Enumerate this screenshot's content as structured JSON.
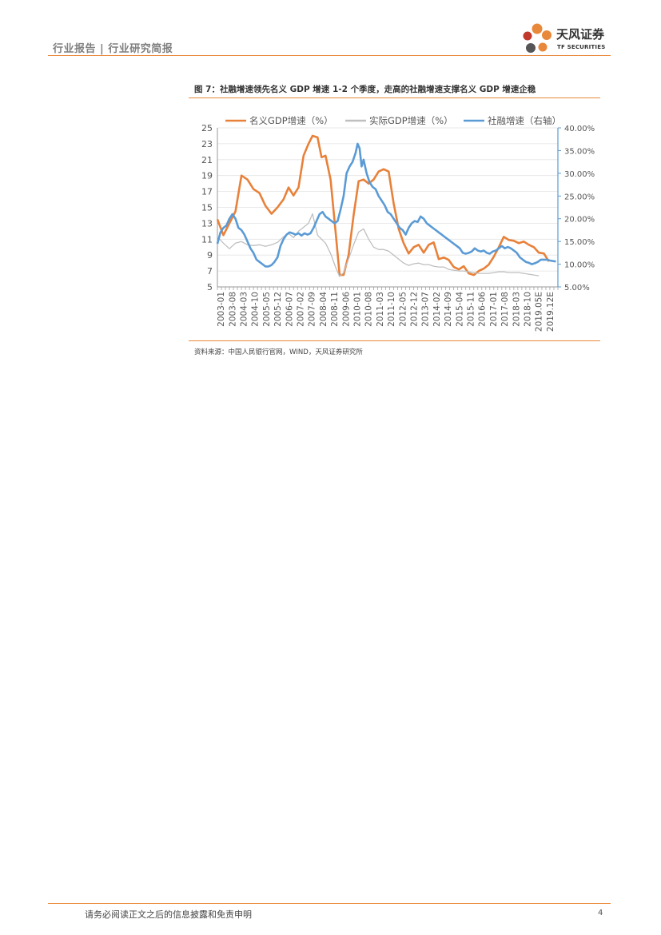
{
  "header": {
    "breadcrumb": "行业报告 | 行业研究简报"
  },
  "logo": {
    "name": "天风证券",
    "sub": "TF SECURITIES",
    "colors": [
      "#e8883a",
      "#c0392b",
      "#555555"
    ]
  },
  "figure": {
    "title": "图 7：社融增速领先名义 GDP 增速 1-2 个季度，走高的社融增速支撑名义 GDP 增速企稳",
    "source": "资料来源：中国人民银行官网，WIND，天风证券研究所"
  },
  "chart_data": {
    "type": "line",
    "y_left": {
      "ticks": [
        "25",
        "23",
        "21",
        "19",
        "17",
        "15",
        "13",
        "11",
        "9",
        "7",
        "5"
      ],
      "min": 5,
      "max": 25
    },
    "y_right": {
      "ticks": [
        "40.00%",
        "35.00%",
        "30.00%",
        "25.00%",
        "20.00%",
        "15.00%",
        "10.00%",
        "5.00%"
      ],
      "min": 5,
      "max": 40
    },
    "x_ticks": [
      "2003-01",
      "2003-08",
      "2004-03",
      "2004-10",
      "2005-05",
      "2005-12",
      "2006-07",
      "2007-02",
      "2007-09",
      "2008-04",
      "2008-11",
      "2009-06",
      "2010-01",
      "2010-08",
      "2011-03",
      "2011-10",
      "2012-05",
      "2012-12",
      "2013-07",
      "2014-02",
      "2014-09",
      "2015-04",
      "2015-11",
      "2016-06",
      "2017-01",
      "2017-08",
      "2018-03",
      "2018-10",
      "2019.05E",
      "2019.12E"
    ],
    "x_range": [
      2003.0,
      2020.0
    ],
    "grid": true,
    "legend_position": "top",
    "series": [
      {
        "name": "名义GDP增速（%）",
        "axis": "left",
        "color": "#e8813a",
        "points": [
          [
            2003.0,
            13.5
          ],
          [
            2003.3,
            11.5
          ],
          [
            2003.6,
            13
          ],
          [
            2003.9,
            14.5
          ],
          [
            2004.2,
            19
          ],
          [
            2004.5,
            18.5
          ],
          [
            2004.8,
            17.3
          ],
          [
            2005.1,
            16.8
          ],
          [
            2005.4,
            15.2
          ],
          [
            2005.7,
            14.2
          ],
          [
            2006.0,
            15
          ],
          [
            2006.3,
            16
          ],
          [
            2006.55,
            17.5
          ],
          [
            2006.8,
            16.5
          ],
          [
            2007.05,
            17.5
          ],
          [
            2007.3,
            21.5
          ],
          [
            2007.55,
            23
          ],
          [
            2007.75,
            24
          ],
          [
            2008.0,
            23.8
          ],
          [
            2008.2,
            21.3
          ],
          [
            2008.4,
            21.5
          ],
          [
            2008.65,
            18.5
          ],
          [
            2008.9,
            12
          ],
          [
            2009.1,
            6.5
          ],
          [
            2009.3,
            6.5
          ],
          [
            2009.55,
            9
          ],
          [
            2009.8,
            14
          ],
          [
            2010.05,
            18.3
          ],
          [
            2010.3,
            18.5
          ],
          [
            2010.55,
            18
          ],
          [
            2010.8,
            18.5
          ],
          [
            2011.05,
            19.5
          ],
          [
            2011.3,
            19.8
          ],
          [
            2011.55,
            19.5
          ],
          [
            2011.8,
            15.5
          ],
          [
            2012.05,
            12.3
          ],
          [
            2012.3,
            10.5
          ],
          [
            2012.55,
            9.2
          ],
          [
            2012.8,
            10
          ],
          [
            2013.05,
            10.3
          ],
          [
            2013.3,
            9.3
          ],
          [
            2013.55,
            10.3
          ],
          [
            2013.8,
            10.6
          ],
          [
            2014.05,
            8.5
          ],
          [
            2014.3,
            8.7
          ],
          [
            2014.55,
            8.4
          ],
          [
            2014.8,
            7.5
          ],
          [
            2015.05,
            7.2
          ],
          [
            2015.3,
            7.6
          ],
          [
            2015.55,
            6.7
          ],
          [
            2015.8,
            6.5
          ],
          [
            2016.05,
            7
          ],
          [
            2016.3,
            7.3
          ],
          [
            2016.55,
            7.8
          ],
          [
            2016.8,
            8.8
          ],
          [
            2017.05,
            10
          ],
          [
            2017.3,
            11.3
          ],
          [
            2017.55,
            10.9
          ],
          [
            2017.8,
            10.8
          ],
          [
            2018.05,
            10.5
          ],
          [
            2018.3,
            10.7
          ],
          [
            2018.55,
            10.3
          ],
          [
            2018.8,
            10
          ],
          [
            2019.05,
            9.3
          ],
          [
            2019.3,
            9.2
          ],
          [
            2019.55,
            8.2
          ]
        ]
      },
      {
        "name": "实际GDP增速（%）",
        "axis": "left",
        "color": "#bfbfbf",
        "points": [
          [
            2003.0,
            11.3
          ],
          [
            2003.3,
            10.5
          ],
          [
            2003.6,
            9.8
          ],
          [
            2003.9,
            10.5
          ],
          [
            2004.2,
            10.7
          ],
          [
            2004.5,
            10.3
          ],
          [
            2004.8,
            10.2
          ],
          [
            2005.1,
            10.3
          ],
          [
            2005.4,
            10.1
          ],
          [
            2005.7,
            10.3
          ],
          [
            2006.0,
            10.6
          ],
          [
            2006.3,
            11.3
          ],
          [
            2006.55,
            11.7
          ],
          [
            2006.8,
            11.2
          ],
          [
            2007.05,
            12
          ],
          [
            2007.3,
            12.5
          ],
          [
            2007.55,
            13
          ],
          [
            2007.75,
            14.2
          ],
          [
            2008.0,
            11.5
          ],
          [
            2008.2,
            11
          ],
          [
            2008.4,
            10.5
          ],
          [
            2008.65,
            9.2
          ],
          [
            2008.9,
            7.5
          ],
          [
            2009.1,
            6.3
          ],
          [
            2009.3,
            6.8
          ],
          [
            2009.55,
            8.5
          ],
          [
            2009.8,
            10.3
          ],
          [
            2010.05,
            11.9
          ],
          [
            2010.3,
            12.3
          ],
          [
            2010.55,
            11
          ],
          [
            2010.8,
            10
          ],
          [
            2011.05,
            9.7
          ],
          [
            2011.3,
            9.7
          ],
          [
            2011.55,
            9.5
          ],
          [
            2011.8,
            9
          ],
          [
            2012.05,
            8.5
          ],
          [
            2012.3,
            8
          ],
          [
            2012.55,
            7.7
          ],
          [
            2012.8,
            7.9
          ],
          [
            2013.05,
            8
          ],
          [
            2013.3,
            7.8
          ],
          [
            2013.55,
            7.8
          ],
          [
            2013.8,
            7.6
          ],
          [
            2014.05,
            7.5
          ],
          [
            2014.3,
            7.5
          ],
          [
            2014.55,
            7.2
          ],
          [
            2014.8,
            7.1
          ],
          [
            2015.05,
            7
          ],
          [
            2015.3,
            7
          ],
          [
            2015.55,
            6.9
          ],
          [
            2015.8,
            6.8
          ],
          [
            2016.05,
            6.7
          ],
          [
            2016.3,
            6.7
          ],
          [
            2016.55,
            6.7
          ],
          [
            2016.8,
            6.8
          ],
          [
            2017.05,
            6.9
          ],
          [
            2017.3,
            6.9
          ],
          [
            2017.55,
            6.8
          ],
          [
            2017.8,
            6.8
          ],
          [
            2018.05,
            6.8
          ],
          [
            2018.3,
            6.7
          ],
          [
            2018.55,
            6.6
          ],
          [
            2018.8,
            6.5
          ],
          [
            2019.05,
            6.4
          ]
        ]
      },
      {
        "name": "社融增速（右轴）",
        "axis": "right",
        "color": "#5b9bd5",
        "points": [
          [
            2003.0,
            14.5
          ],
          [
            2003.15,
            17
          ],
          [
            2003.3,
            18
          ],
          [
            2003.45,
            18.5
          ],
          [
            2003.6,
            20
          ],
          [
            2003.75,
            21
          ],
          [
            2003.9,
            20
          ],
          [
            2004.05,
            18
          ],
          [
            2004.2,
            17.5
          ],
          [
            2004.35,
            16.5
          ],
          [
            2004.5,
            15
          ],
          [
            2004.65,
            13.5
          ],
          [
            2004.8,
            12.5
          ],
          [
            2004.95,
            11
          ],
          [
            2005.1,
            10.5
          ],
          [
            2005.25,
            10
          ],
          [
            2005.4,
            9.5
          ],
          [
            2005.55,
            9.5
          ],
          [
            2005.7,
            9.8
          ],
          [
            2005.85,
            10.5
          ],
          [
            2006.0,
            11.5
          ],
          [
            2006.15,
            14
          ],
          [
            2006.3,
            15.5
          ],
          [
            2006.45,
            16.5
          ],
          [
            2006.6,
            17
          ],
          [
            2006.75,
            16.8
          ],
          [
            2006.9,
            16.5
          ],
          [
            2007.05,
            16.8
          ],
          [
            2007.2,
            16.3
          ],
          [
            2007.35,
            16.8
          ],
          [
            2007.5,
            16.5
          ],
          [
            2007.65,
            16.8
          ],
          [
            2007.8,
            18
          ],
          [
            2007.95,
            19.5
          ],
          [
            2008.1,
            21
          ],
          [
            2008.25,
            21.5
          ],
          [
            2008.4,
            20.5
          ],
          [
            2008.55,
            20
          ],
          [
            2008.7,
            19.5
          ],
          [
            2008.85,
            19
          ],
          [
            2009.0,
            19.5
          ],
          [
            2009.15,
            22
          ],
          [
            2009.3,
            25
          ],
          [
            2009.45,
            30
          ],
          [
            2009.6,
            31.5
          ],
          [
            2009.75,
            32.5
          ],
          [
            2009.9,
            34.5
          ],
          [
            2010.0,
            36.5
          ],
          [
            2010.1,
            35.5
          ],
          [
            2010.2,
            31.5
          ],
          [
            2010.3,
            33
          ],
          [
            2010.45,
            30
          ],
          [
            2010.6,
            28
          ],
          [
            2010.75,
            27
          ],
          [
            2010.9,
            26.5
          ],
          [
            2011.05,
            25
          ],
          [
            2011.2,
            24
          ],
          [
            2011.35,
            23
          ],
          [
            2011.5,
            21.5
          ],
          [
            2011.65,
            21
          ],
          [
            2011.8,
            20
          ],
          [
            2011.95,
            19
          ],
          [
            2012.1,
            18
          ],
          [
            2012.25,
            17.5
          ],
          [
            2012.4,
            16.5
          ],
          [
            2012.55,
            18
          ],
          [
            2012.7,
            19
          ],
          [
            2012.85,
            19.5
          ],
          [
            2013.0,
            19.3
          ],
          [
            2013.15,
            20.5
          ],
          [
            2013.3,
            20
          ],
          [
            2013.45,
            19
          ],
          [
            2013.6,
            18.5
          ],
          [
            2013.75,
            18
          ],
          [
            2013.9,
            17.5
          ],
          [
            2014.05,
            17
          ],
          [
            2014.2,
            16.5
          ],
          [
            2014.35,
            16
          ],
          [
            2014.5,
            15.5
          ],
          [
            2014.65,
            15
          ],
          [
            2014.8,
            14.5
          ],
          [
            2014.95,
            14
          ],
          [
            2015.1,
            13.5
          ],
          [
            2015.25,
            12.5
          ],
          [
            2015.4,
            12.3
          ],
          [
            2015.55,
            12.5
          ],
          [
            2015.7,
            12.8
          ],
          [
            2015.85,
            13.5
          ],
          [
            2016.0,
            13
          ],
          [
            2016.15,
            12.8
          ],
          [
            2016.3,
            13
          ],
          [
            2016.45,
            12.5
          ],
          [
            2016.6,
            12.3
          ],
          [
            2016.75,
            12.8
          ],
          [
            2016.9,
            13
          ],
          [
            2017.05,
            13.5
          ],
          [
            2017.2,
            14
          ],
          [
            2017.35,
            13.5
          ],
          [
            2017.5,
            13.8
          ],
          [
            2017.65,
            13.5
          ],
          [
            2017.8,
            13
          ],
          [
            2017.95,
            12.5
          ],
          [
            2018.1,
            11.5
          ],
          [
            2018.25,
            11
          ],
          [
            2018.4,
            10.5
          ],
          [
            2018.55,
            10.3
          ],
          [
            2018.7,
            10
          ],
          [
            2018.85,
            10.2
          ],
          [
            2019.0,
            10.5
          ],
          [
            2019.15,
            11
          ],
          [
            2019.3,
            11
          ],
          [
            2019.45,
            11
          ],
          [
            2019.6,
            10.8
          ],
          [
            2019.75,
            10.7
          ],
          [
            2019.9,
            10.6
          ]
        ]
      }
    ]
  },
  "footer": {
    "disclaimer": "请务必阅读正文之后的信息披露和免责申明",
    "page": "4"
  }
}
